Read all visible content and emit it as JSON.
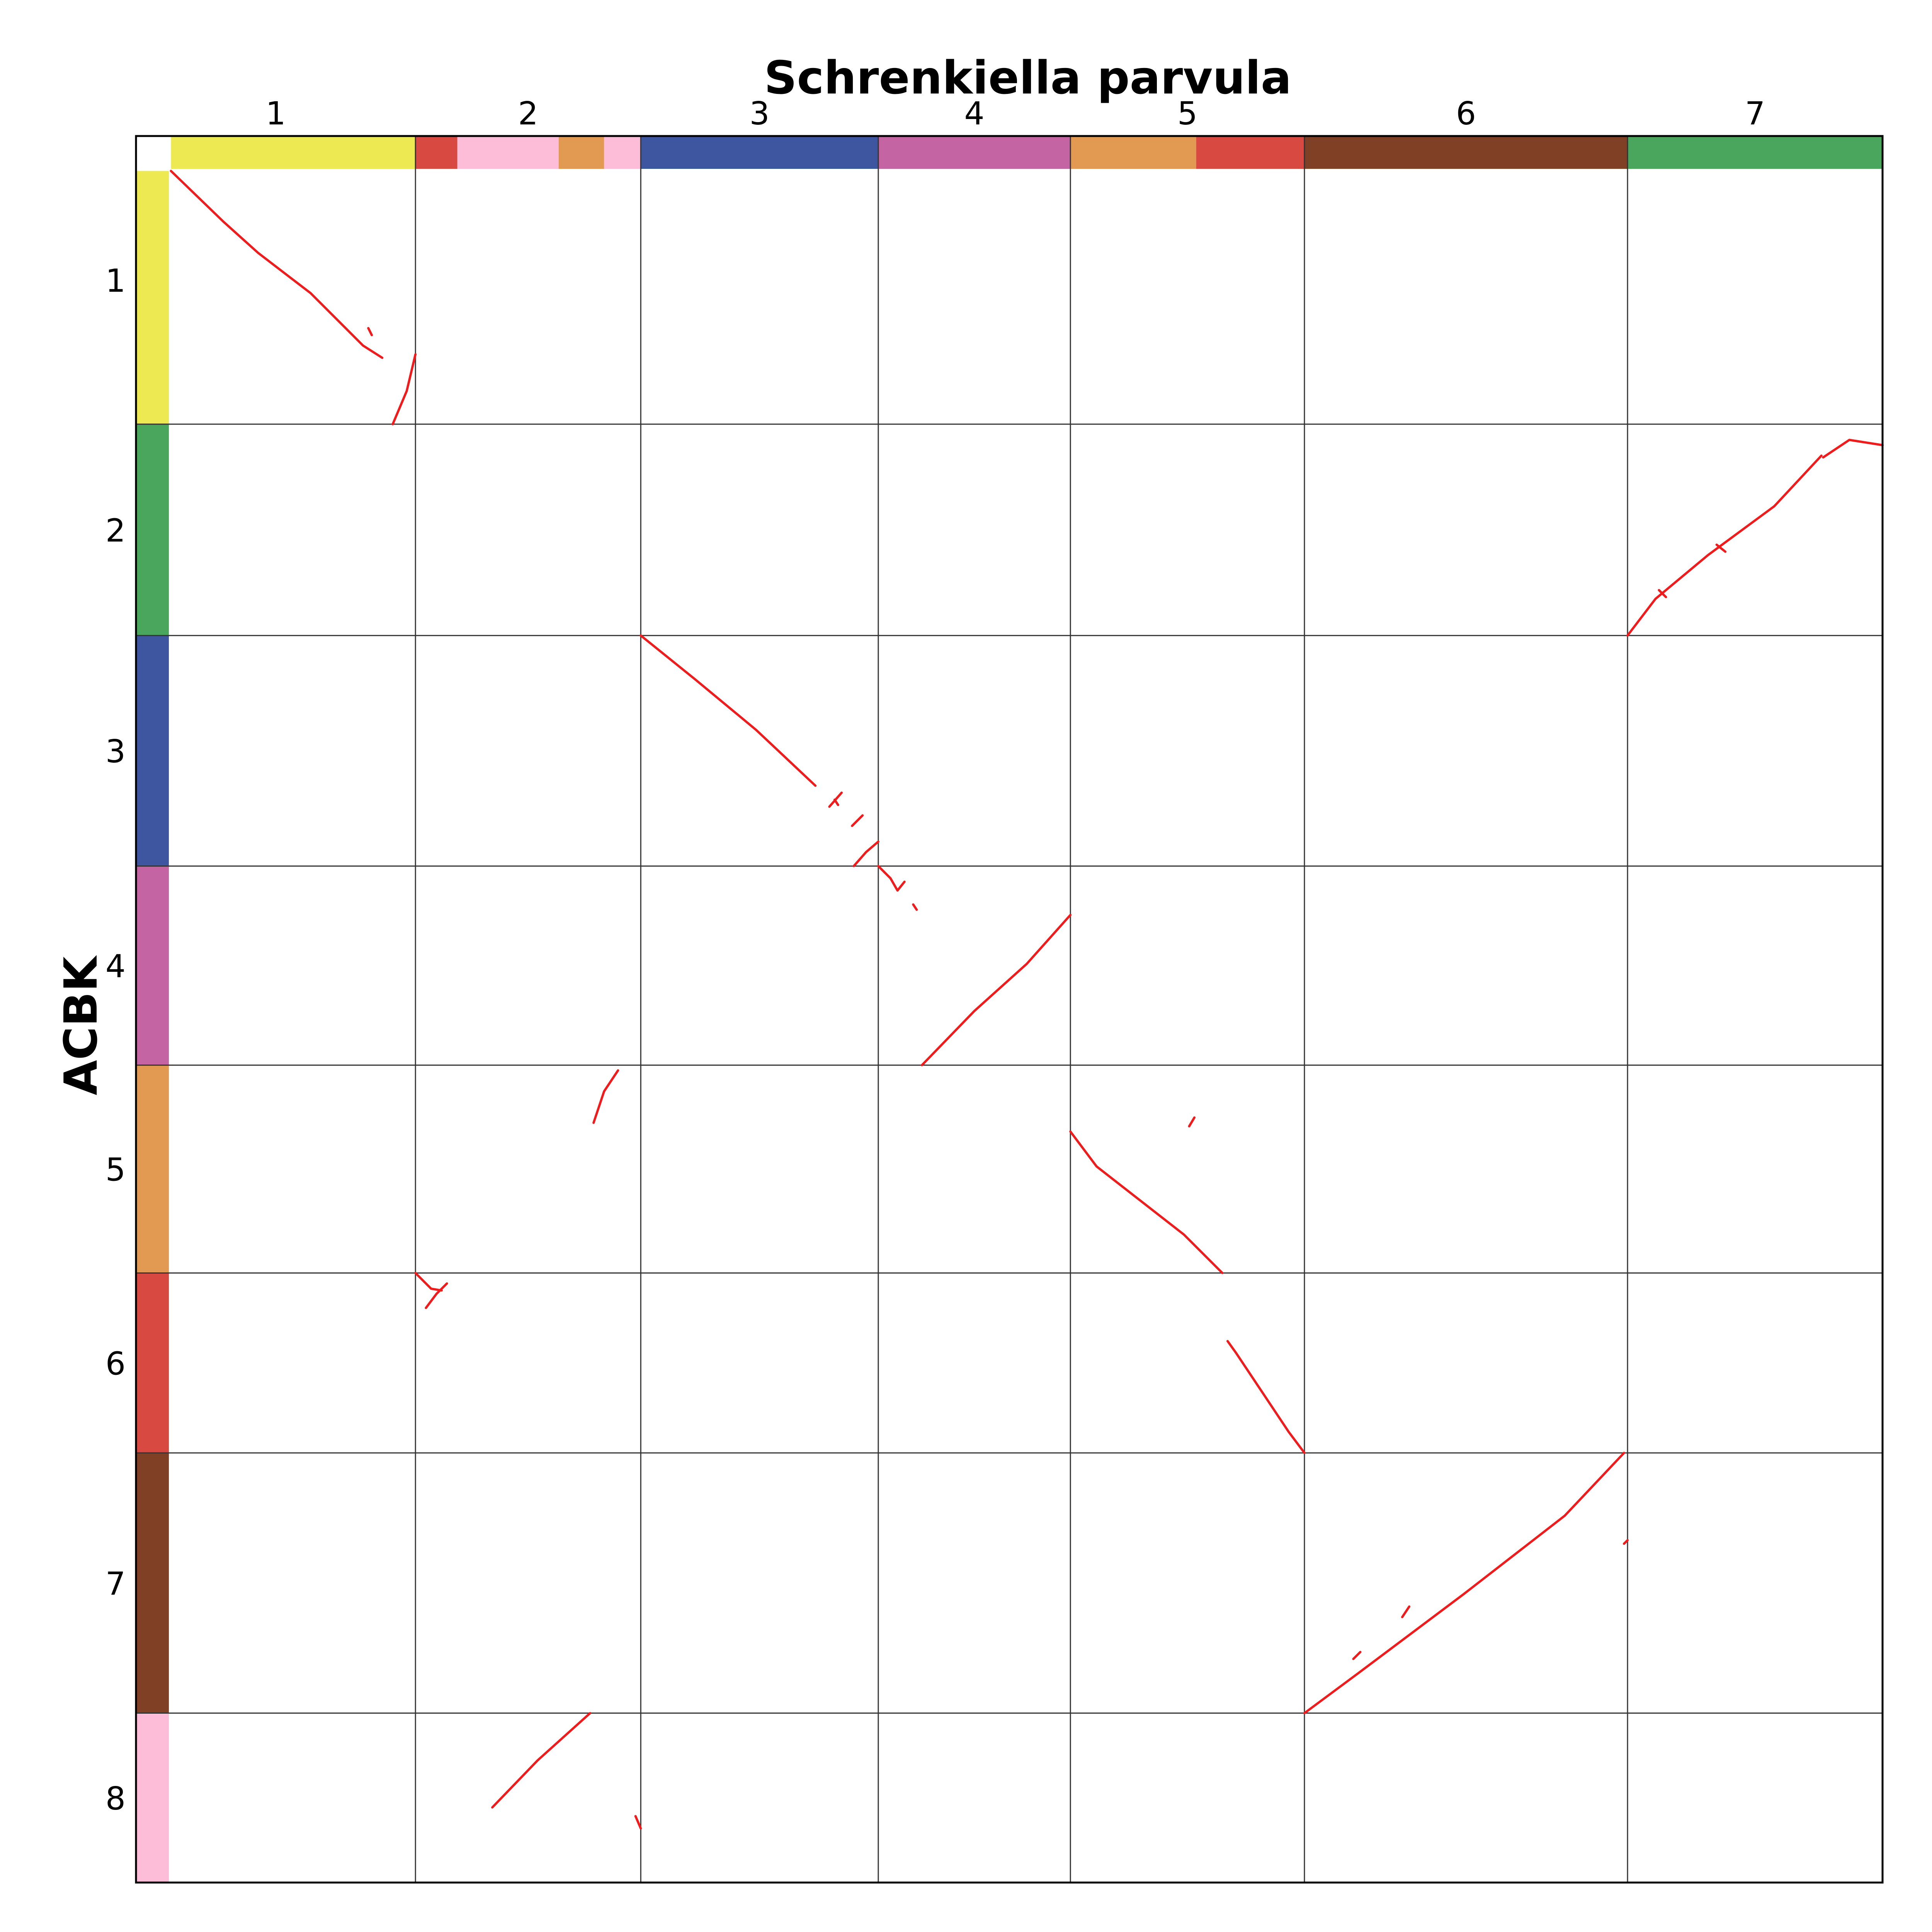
{
  "chart_data": {
    "type": "dotplot",
    "title": "Schrenkiella parvula",
    "ylabel": "ACBK",
    "grid": true,
    "line_color": "#ee1c1c",
    "x_chromosomes": [
      {
        "label": "1",
        "start": 0,
        "end": 0.16
      },
      {
        "label": "2",
        "start": 0.16,
        "end": 0.289
      },
      {
        "label": "3",
        "start": 0.289,
        "end": 0.425
      },
      {
        "label": "4",
        "start": 0.425,
        "end": 0.535
      },
      {
        "label": "5",
        "start": 0.535,
        "end": 0.669
      },
      {
        "label": "6",
        "start": 0.669,
        "end": 0.854
      },
      {
        "label": "7",
        "start": 0.854,
        "end": 1.0
      }
    ],
    "y_chromosomes": [
      {
        "label": "1",
        "start": 0,
        "end": 0.165
      },
      {
        "label": "2",
        "start": 0.165,
        "end": 0.286
      },
      {
        "label": "3",
        "start": 0.286,
        "end": 0.418
      },
      {
        "label": "4",
        "start": 0.418,
        "end": 0.532
      },
      {
        "label": "5",
        "start": 0.532,
        "end": 0.651
      },
      {
        "label": "6",
        "start": 0.651,
        "end": 0.754
      },
      {
        "label": "7",
        "start": 0.754,
        "end": 0.903
      },
      {
        "label": "8",
        "start": 0.903,
        "end": 1.0
      }
    ],
    "x_color_blocks": [
      {
        "start": 0.02,
        "end": 0.16,
        "color": "#ede953"
      },
      {
        "start": 0.16,
        "end": 0.184,
        "color": "#d84a41"
      },
      {
        "start": 0.184,
        "end": 0.242,
        "color": "#fdbdd9"
      },
      {
        "start": 0.242,
        "end": 0.268,
        "color": "#e29a52"
      },
      {
        "start": 0.268,
        "end": 0.289,
        "color": "#fdbdd9"
      },
      {
        "start": 0.289,
        "end": 0.425,
        "color": "#3e56a0"
      },
      {
        "start": 0.425,
        "end": 0.535,
        "color": "#c564a2"
      },
      {
        "start": 0.535,
        "end": 0.607,
        "color": "#e29a52"
      },
      {
        "start": 0.607,
        "end": 0.669,
        "color": "#d84a41"
      },
      {
        "start": 0.669,
        "end": 0.854,
        "color": "#7f4026"
      },
      {
        "start": 0.854,
        "end": 1.0,
        "color": "#4aa65d"
      }
    ],
    "y_color_blocks": [
      {
        "start": 0.02,
        "end": 0.165,
        "color": "#ede953"
      },
      {
        "start": 0.165,
        "end": 0.286,
        "color": "#4aa65d"
      },
      {
        "start": 0.286,
        "end": 0.418,
        "color": "#3e56a0"
      },
      {
        "start": 0.418,
        "end": 0.532,
        "color": "#c564a2"
      },
      {
        "start": 0.532,
        "end": 0.651,
        "color": "#e29a52"
      },
      {
        "start": 0.651,
        "end": 0.754,
        "color": "#d84a41"
      },
      {
        "start": 0.754,
        "end": 0.903,
        "color": "#7f4026"
      },
      {
        "start": 0.903,
        "end": 1.0,
        "color": "#fdbdd9"
      }
    ],
    "segments": [
      {
        "x": [
          0.02,
          0.05,
          0.07,
          0.1,
          0.13,
          0.141
        ],
        "y": [
          0.02,
          0.049,
          0.067,
          0.09,
          0.12,
          0.127
        ]
      },
      {
        "x": [
          0.133,
          0.135
        ],
        "y": [
          0.11,
          0.114
        ]
      },
      {
        "x": [
          0.147,
          0.155,
          0.16
        ],
        "y": [
          0.165,
          0.146,
          0.125
        ]
      },
      {
        "x": [
          0.854,
          0.87,
          0.9,
          0.938,
          0.965
        ],
        "y": [
          0.286,
          0.265,
          0.24,
          0.212,
          0.183
        ]
      },
      {
        "x": [
          0.872,
          0.876
        ],
        "y": [
          0.26,
          0.264
        ]
      },
      {
        "x": [
          0.905,
          0.91
        ],
        "y": [
          0.234,
          0.238
        ]
      },
      {
        "x": [
          0.966,
          0.981,
          1.0
        ],
        "y": [
          0.184,
          0.174,
          0.177
        ]
      },
      {
        "x": [
          0.289,
          0.32,
          0.355,
          0.389
        ],
        "y": [
          0.286,
          0.311,
          0.34,
          0.372
        ]
      },
      {
        "x": [
          0.397,
          0.404
        ],
        "y": [
          0.384,
          0.376
        ]
      },
      {
        "x": [
          0.4,
          0.402
        ],
        "y": [
          0.38,
          0.383
        ]
      },
      {
        "x": [
          0.41,
          0.416
        ],
        "y": [
          0.395,
          0.389
        ]
      },
      {
        "x": [
          0.411,
          0.418,
          0.425
        ],
        "y": [
          0.418,
          0.41,
          0.404
        ]
      },
      {
        "x": [
          0.425,
          0.432,
          0.436,
          0.44
        ],
        "y": [
          0.418,
          0.425,
          0.432,
          0.427
        ]
      },
      {
        "x": [
          0.445,
          0.447
        ],
        "y": [
          0.44,
          0.443
        ]
      },
      {
        "x": [
          0.45,
          0.48,
          0.51,
          0.535
        ],
        "y": [
          0.532,
          0.501,
          0.474,
          0.446
        ]
      },
      {
        "x": [
          0.262,
          0.268,
          0.276
        ],
        "y": [
          0.565,
          0.547,
          0.535
        ]
      },
      {
        "x": [
          0.535,
          0.55,
          0.6,
          0.622
        ],
        "y": [
          0.57,
          0.59,
          0.629,
          0.651
        ]
      },
      {
        "x": [
          0.603,
          0.606
        ],
        "y": [
          0.567,
          0.562
        ]
      },
      {
        "x": [
          0.16,
          0.169,
          0.175
        ],
        "y": [
          0.651,
          0.66,
          0.661
        ]
      },
      {
        "x": [
          0.166,
          0.172,
          0.178
        ],
        "y": [
          0.671,
          0.663,
          0.657
        ]
      },
      {
        "x": [
          0.625,
          0.63,
          0.66,
          0.669
        ],
        "y": [
          0.69,
          0.697,
          0.742,
          0.754
        ]
      },
      {
        "x": [
          0.669,
          0.7,
          0.76,
          0.818,
          0.852
        ],
        "y": [
          0.903,
          0.88,
          0.835,
          0.79,
          0.754
        ]
      },
      {
        "x": [
          0.697,
          0.701
        ],
        "y": [
          0.872,
          0.868
        ]
      },
      {
        "x": [
          0.725,
          0.729
        ],
        "y": [
          0.848,
          0.842
        ]
      },
      {
        "x": [
          0.852,
          0.854
        ],
        "y": [
          0.806,
          0.804
        ]
      },
      {
        "x": [
          0.204,
          0.23,
          0.26
        ],
        "y": [
          0.957,
          0.93,
          0.903
        ]
      },
      {
        "x": [
          0.286,
          0.289
        ],
        "y": [
          0.962,
          0.969
        ]
      }
    ]
  }
}
